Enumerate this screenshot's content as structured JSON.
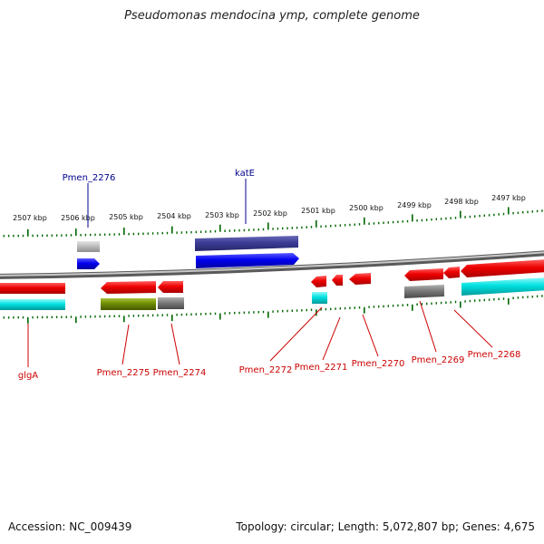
{
  "title": "Pseudomonas mendocina ymp, complete genome",
  "footer": {
    "accession": "Accession: NC_009439",
    "summary": "Topology: circular; Length: 5,072,807 bp; Genes: 4,675"
  },
  "colors": {
    "gene_forward": "#0000e6",
    "gene_reverse": "#ee0000",
    "cds_purple": "#3c3c96",
    "rna_cyan": "#00e0e0",
    "pseudo_grey": "#8c8c8c",
    "olive": "#6e8c00",
    "tick_green": "#006600",
    "backbone_grey": "#777777",
    "label_blue": "#00008b",
    "label_red": "#cc0000"
  },
  "kbp_labels": [
    "2507 kbp",
    "2506 kbp",
    "2505 kbp",
    "2504 kbp",
    "2503 kbp",
    "2502 kbp",
    "2501 kbp",
    "2500 kbp",
    "2499 kbp",
    "2498 kbp",
    "2497 kbp"
  ],
  "gene_labels": {
    "top": [
      "Pmen_2276",
      "katE"
    ],
    "bottom": [
      "glgA",
      "Pmen_2275",
      "Pmen_2274",
      "Pmen_2272",
      "Pmen_2271",
      "Pmen_2270",
      "Pmen_2269",
      "Pmen_2268"
    ]
  }
}
